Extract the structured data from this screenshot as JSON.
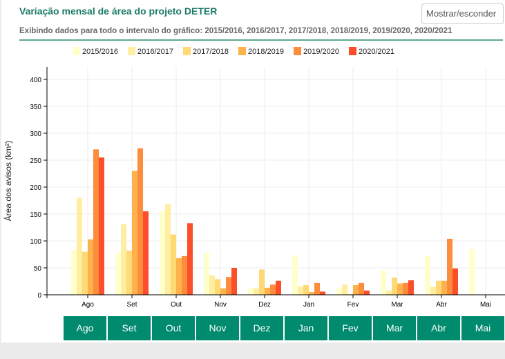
{
  "header": {
    "title": "Variação mensal de área do projeto DETER",
    "toggle_label": "Mostrar/esconder",
    "subtitle": "Exibindo dados para todo o intervalo do gráfico: 2015/2016, 2016/2017, 2017/2018, 2018/2019, 2019/2020, 2020/2021"
  },
  "chart_data": {
    "type": "bar",
    "xlabel": "",
    "ylabel": "Área dos avisos (km²)",
    "ylim": [
      0,
      400
    ],
    "yticks": [
      0,
      50,
      100,
      150,
      200,
      250,
      300,
      350,
      400
    ],
    "grid": true,
    "legend": "top",
    "categories": [
      "Ago",
      "Set",
      "Out",
      "Nov",
      "Dez",
      "Jan",
      "Fev",
      "Mar",
      "Abr",
      "Mai"
    ],
    "series": [
      {
        "name": "2015/2016",
        "color": "#ffffcc",
        "values": [
          83,
          78,
          155,
          78,
          12,
          73,
          12,
          45,
          72,
          85
        ]
      },
      {
        "name": "2016/2017",
        "color": "#ffeda0",
        "values": [
          180,
          131,
          168,
          36,
          12,
          15,
          19,
          8,
          15,
          null
        ]
      },
      {
        "name": "2017/2018",
        "color": "#fed976",
        "values": [
          80,
          82,
          112,
          29,
          47,
          18,
          1,
          32,
          26,
          null
        ]
      },
      {
        "name": "2018/2019",
        "color": "#feb24c",
        "values": [
          103,
          230,
          68,
          12,
          13,
          5,
          18,
          21,
          26,
          null
        ]
      },
      {
        "name": "2019/2020",
        "color": "#fd8d3c",
        "values": [
          270,
          272,
          72,
          33,
          19,
          22,
          22,
          22,
          104,
          null
        ]
      },
      {
        "name": "2020/2021",
        "color": "#fc4e2a",
        "values": [
          255,
          155,
          133,
          50,
          26,
          6,
          8,
          27,
          49,
          null
        ]
      }
    ]
  },
  "month_buttons": [
    "Ago",
    "Set",
    "Out",
    "Nov",
    "Dez",
    "Jan",
    "Fev",
    "Mar",
    "Abr",
    "Mai"
  ]
}
